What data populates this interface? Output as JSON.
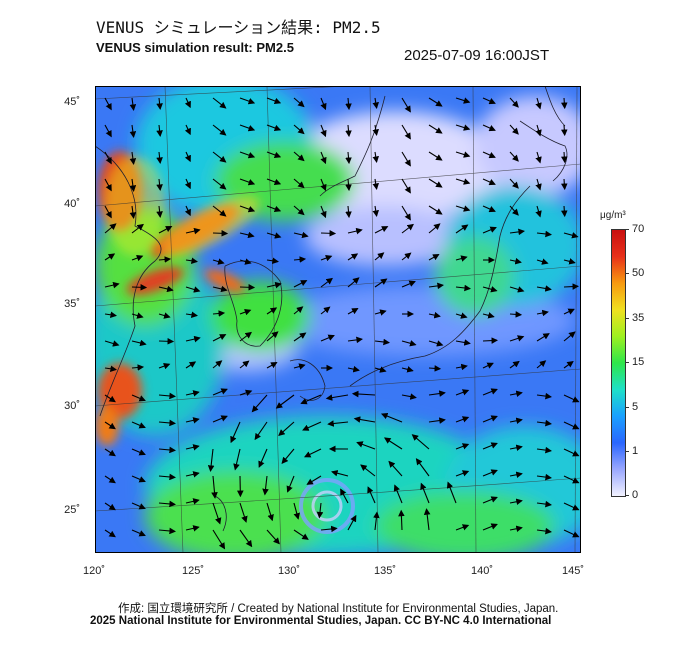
{
  "header": {
    "title_jp": "VENUS シミュレーション結果: PM2.5",
    "title_en": "VENUS simulation result: PM2.5",
    "datetime": "2025-07-09 16:00JST"
  },
  "map": {
    "variable": "PM2.5",
    "lat_labels": [
      "45˚",
      "40˚",
      "35˚",
      "30˚",
      "25˚"
    ],
    "lon_labels": [
      "120˚",
      "125˚",
      "130˚",
      "135˚",
      "140˚",
      "145˚"
    ],
    "features": [
      "wind-vector-arrows",
      "coastlines",
      "lat-lon-graticule",
      "typhoon-vortex"
    ]
  },
  "colorbar": {
    "unit": "μg/m³",
    "ticks": [
      "70",
      "50",
      "35",
      "15",
      "5",
      "1",
      "0"
    ],
    "colors": [
      "#f2f2ff",
      "#9aa8ff",
      "#2a66ff",
      "#1aa0ff",
      "#1ee0c8",
      "#2ee64a",
      "#9ef020",
      "#f0e020",
      "#f79a10",
      "#e8301a",
      "#c81010"
    ]
  },
  "footer": {
    "credit_line1": "作成: 国立環境研究所 / Created by National Institute for Environmental Studies, Japan.",
    "credit_line2": "2025 National Institute for Environmental Studies, Japan. CC BY-NC 4.0 International"
  }
}
